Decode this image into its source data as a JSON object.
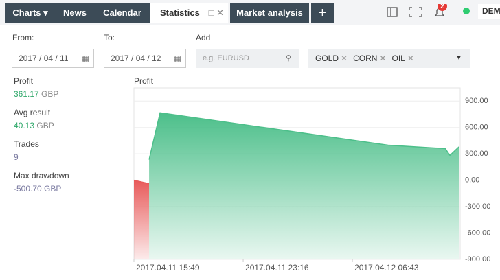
{
  "tabs": [
    "Charts ▾",
    "News",
    "Calendar",
    "Statistics",
    "Market analysis",
    "+"
  ],
  "notification_count": "2",
  "account": "DEM",
  "filters": {
    "from_label": "From:",
    "from_value": "2017 / 04 / 11",
    "to_label": "To:",
    "to_value": "2017 / 04 / 12",
    "add_label": "Add",
    "add_placeholder": "e.g. EURUSD",
    "tags": [
      "GOLD",
      "CORN",
      "OIL"
    ]
  },
  "stats": [
    {
      "label": "Profit",
      "value": "361.17",
      "unit": "GBP"
    },
    {
      "label": "Avg result",
      "value": "40.13",
      "unit": "GBP"
    },
    {
      "label": "Trades",
      "value": "9"
    },
    {
      "label": "Max drawdown",
      "value": "-500.70",
      "unit": "GBP"
    }
  ],
  "chart_data": {
    "type": "area",
    "title": "Profit",
    "x": [
      "2017.04.11 15:49",
      "2017.04.11 16:51",
      "2017.04.11 16:51",
      "2017.04.11 17:36",
      "2017.04.12 09:09",
      "2017.04.12 13:03",
      "2017.04.12 13:22",
      "2017.04.12 13:59"
    ],
    "values": [
      0,
      -39,
      235,
      767,
      399,
      360,
      282,
      380
    ],
    "color": "#4cbf8a",
    "negative_color": "#e85a5a",
    "xlim": [
      "2017.04.11 15:49",
      "2017.04.12 14:04"
    ],
    "xticks": [
      "2017.04.11 15:49",
      "2017.04.11 23:16",
      "2017.04.12 06:43"
    ],
    "ylim": [
      -900,
      1050
    ],
    "yticks": [
      {
        "value": 900,
        "label": "900.00"
      },
      {
        "value": 600,
        "label": "600.00"
      },
      {
        "value": 300,
        "label": "300.00"
      },
      {
        "value": 0,
        "label": "0.00"
      },
      {
        "value": -300,
        "label": "-300.00"
      },
      {
        "value": -600,
        "label": "-600.00"
      },
      {
        "value": -900,
        "label": "-900.00"
      }
    ],
    "grid": true
  }
}
